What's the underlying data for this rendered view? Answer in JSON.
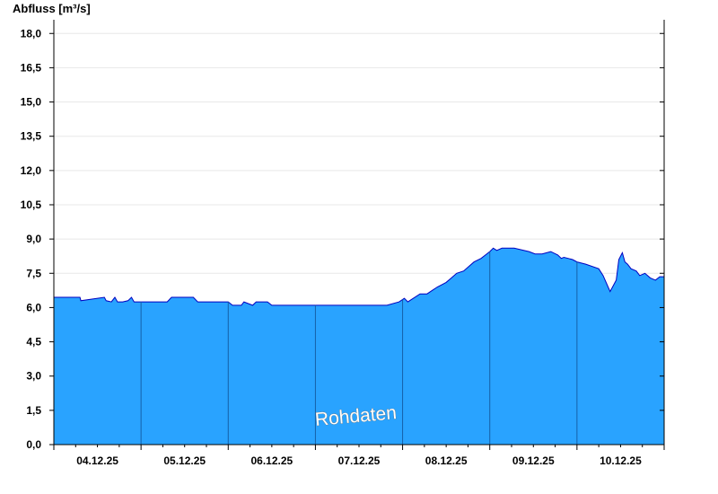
{
  "chart_data": {
    "type": "area",
    "title": "",
    "ylabel": "Abfluss [m³/s]",
    "xlabel": "",
    "ylim": [
      0,
      18.6
    ],
    "yticks": [
      0,
      1.5,
      3,
      4.5,
      6,
      7.5,
      9,
      10.5,
      12,
      13.5,
      15,
      16.5,
      18
    ],
    "ytick_labels": [
      "0,0",
      "1,5",
      "3,0",
      "4,5",
      "6,0",
      "7,5",
      "9,0",
      "10,5",
      "12,0",
      "13,5",
      "15,0",
      "16,5",
      "18,0"
    ],
    "xlim": [
      0,
      7
    ],
    "xtick_labels": [
      "04.12.25",
      "05.12.25",
      "06.12.25",
      "07.12.25",
      "08.12.25",
      "09.12.25",
      "10.12.25"
    ],
    "grid": "horizontal",
    "watermark": "Rohdaten",
    "colors": {
      "fill": "#29a3ff",
      "line": "#0000c0",
      "grid": "#e8e8e8",
      "day_divider": "#1560a8"
    },
    "series": [
      {
        "x": [
          0,
          0.3,
          0.31,
          0.58,
          0.6,
          0.66,
          0.7,
          0.73,
          0.79,
          0.85,
          0.89,
          0.92,
          1.3,
          1.35,
          1.6,
          1.65,
          2.0,
          2.05,
          2.15,
          2.18,
          2.28,
          2.32,
          2.45,
          2.5,
          2.62,
          3.0,
          3.5,
          3.82,
          3.96,
          4.02,
          4.06,
          4.2,
          4.28,
          4.34,
          4.4,
          4.5,
          4.56,
          4.62,
          4.7,
          4.76,
          4.82,
          4.9,
          4.95,
          5.0,
          5.04,
          5.08,
          5.14,
          5.2,
          5.28,
          5.45,
          5.52,
          5.6,
          5.7,
          5.78,
          5.82,
          5.85,
          5.9,
          5.95,
          6.0,
          6.1,
          6.25,
          6.3,
          6.38,
          6.45,
          6.48,
          6.52,
          6.55,
          6.58,
          6.62,
          6.68,
          6.72,
          6.78,
          6.84,
          6.9,
          6.95,
          7.0
        ],
        "y": [
          6.45,
          6.45,
          6.3,
          6.45,
          6.3,
          6.25,
          6.45,
          6.25,
          6.25,
          6.3,
          6.45,
          6.25,
          6.25,
          6.45,
          6.45,
          6.25,
          6.25,
          6.1,
          6.1,
          6.25,
          6.1,
          6.25,
          6.25,
          6.1,
          6.1,
          6.1,
          6.1,
          6.1,
          6.25,
          6.4,
          6.25,
          6.6,
          6.6,
          6.75,
          6.9,
          7.1,
          7.3,
          7.5,
          7.6,
          7.8,
          8.0,
          8.15,
          8.3,
          8.45,
          8.6,
          8.5,
          8.6,
          8.6,
          8.6,
          8.45,
          8.35,
          8.35,
          8.45,
          8.3,
          8.15,
          8.2,
          8.15,
          8.1,
          8.0,
          7.9,
          7.7,
          7.4,
          6.7,
          7.2,
          8.1,
          8.4,
          8.0,
          7.9,
          7.7,
          7.6,
          7.4,
          7.5,
          7.3,
          7.2,
          7.35,
          7.35
        ]
      }
    ]
  }
}
